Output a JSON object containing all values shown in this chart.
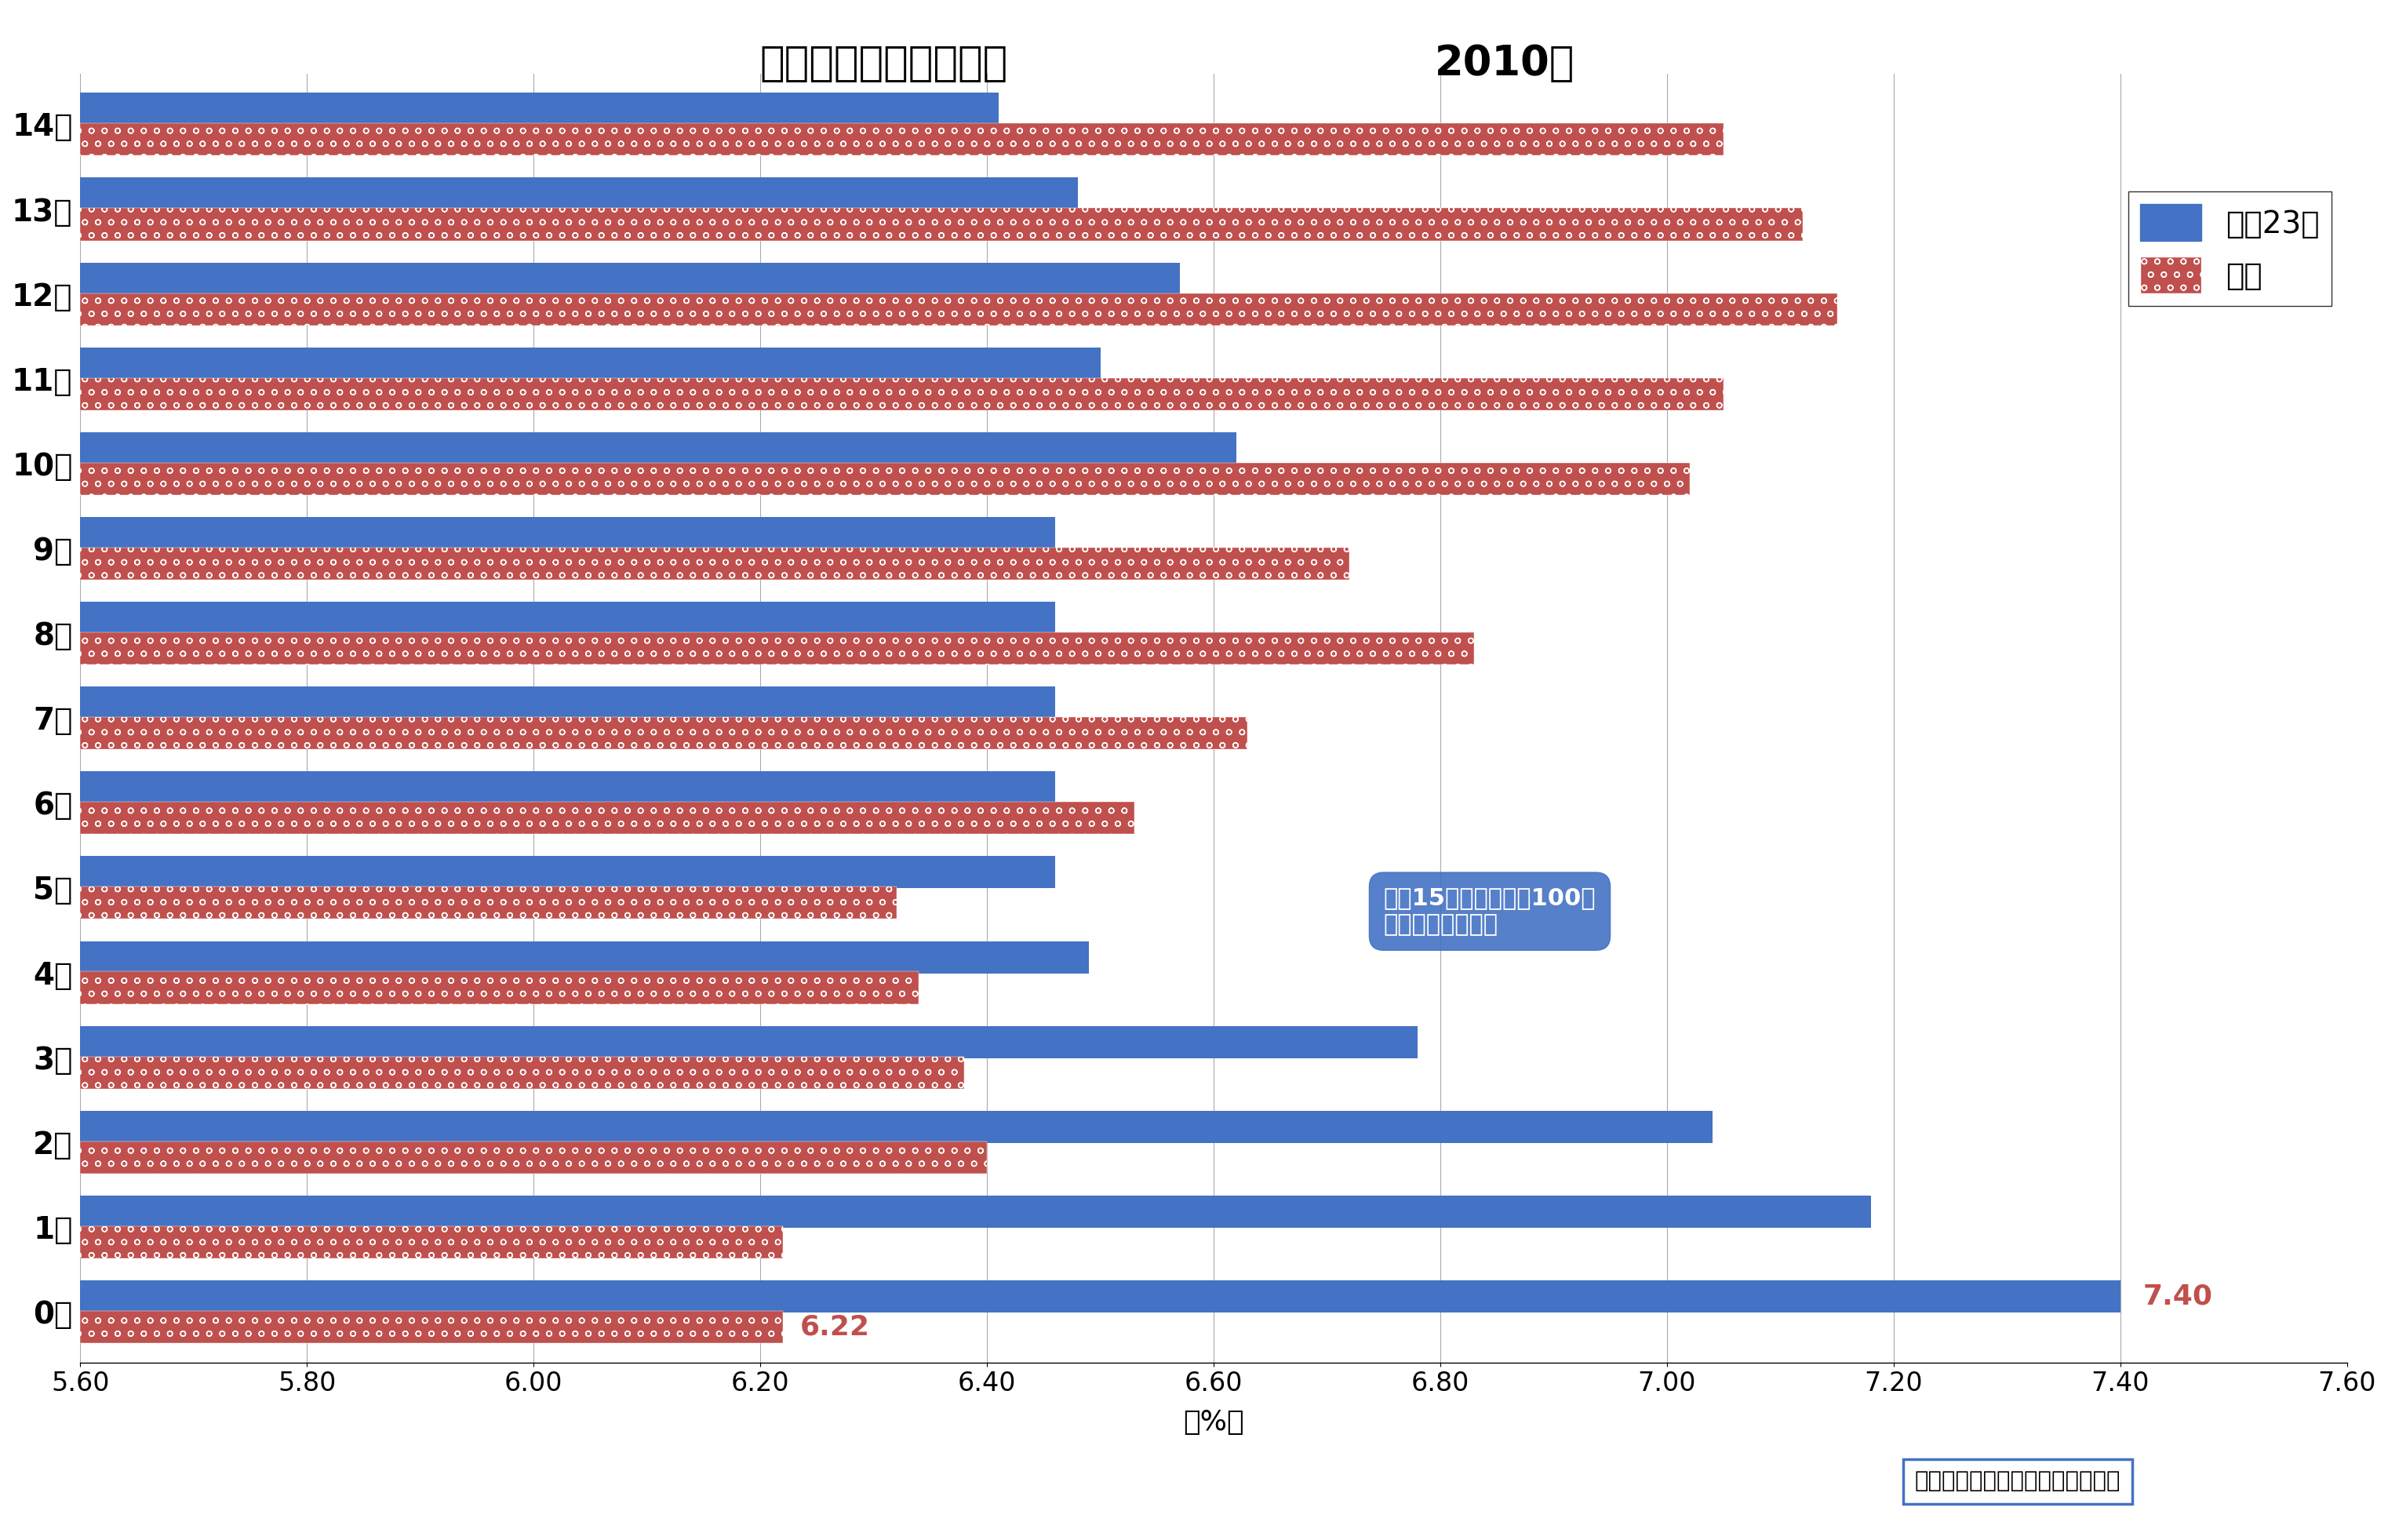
{
  "title_left": "子ども人口ピラミッド",
  "title_right": "2010年",
  "xlabel": "（%）",
  "xlim": [
    5.6,
    7.6
  ],
  "xticks": [
    5.6,
    5.8,
    6.0,
    6.2,
    6.4,
    6.6,
    6.8,
    7.0,
    7.2,
    7.4,
    7.6
  ],
  "ages": [
    "0歳",
    "1歳",
    "2歳",
    "3歳",
    "4歳",
    "5歳",
    "6歳",
    "7歳",
    "8歳",
    "9歳",
    "10歳",
    "11歳",
    "12歳",
    "13歳",
    "14歳"
  ],
  "tokyo_values": [
    7.4,
    7.18,
    7.04,
    6.78,
    6.49,
    6.46,
    6.46,
    6.46,
    6.46,
    6.46,
    6.62,
    6.5,
    6.57,
    6.48,
    6.41
  ],
  "national_values": [
    6.22,
    6.22,
    6.4,
    6.38,
    6.34,
    6.32,
    6.53,
    6.63,
    6.83,
    6.72,
    7.02,
    7.05,
    7.15,
    7.12,
    7.05
  ],
  "tokyo_color": "#4472C4",
  "national_color": "#C0504D",
  "national_edge_color": "#8B0000",
  "annotation_text": "＊「15歳未満人口＝100」\nとしたときの割合",
  "annotation_box_color": "#4472C4",
  "label_tokyo": "東京23区",
  "label_national": "全国",
  "source_text": "資料）総務省統計局「国勢調査」",
  "val_tokyo_0": "7.40",
  "val_national_0": "6.22",
  "bg_color": "#FFFFFF"
}
